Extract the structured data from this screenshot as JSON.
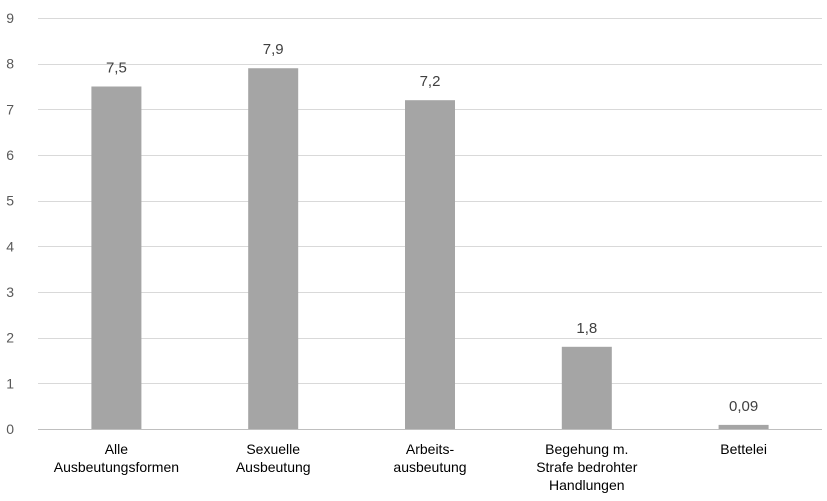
{
  "chart_data": {
    "type": "bar",
    "title": "",
    "xlabel": "",
    "ylabel": "",
    "categories": [
      [
        "Alle",
        "Ausbeutungsformen"
      ],
      [
        "Sexuelle",
        "Ausbeutung"
      ],
      [
        "Arbeits-",
        "ausbeutung"
      ],
      [
        "Begehung m.",
        "Strafe bedrohter",
        "Handlungen"
      ],
      [
        "Bettelei"
      ]
    ],
    "values": [
      7.5,
      7.9,
      7.2,
      1.8,
      0.09
    ],
    "data_labels": [
      "7,5",
      "7,9",
      "7,2",
      "1,8",
      "0,09"
    ],
    "ylim": [
      0,
      9
    ],
    "y_ticks": [
      0,
      1,
      2,
      3,
      4,
      5,
      6,
      7,
      8,
      9
    ],
    "grid": true,
    "legend": "none",
    "bar_color": "#a5a5a5"
  }
}
